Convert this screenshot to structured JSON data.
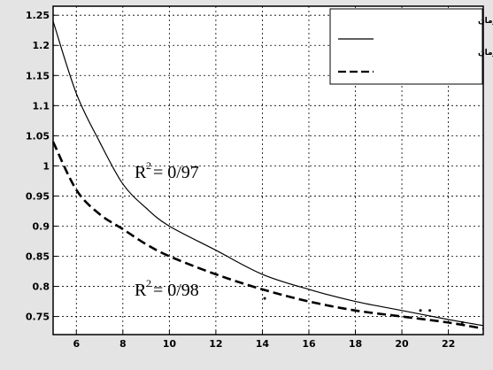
{
  "chart_data": {
    "type": "line",
    "xlim": [
      5,
      23.5
    ],
    "ylim": [
      0.72,
      1.265
    ],
    "x_ticks": [
      6,
      8,
      10,
      12,
      14,
      16,
      18,
      20,
      22
    ],
    "x_tick_labels": [
      "6",
      "8",
      "10",
      "12",
      "14",
      "16",
      "18",
      "20",
      "22"
    ],
    "y_ticks": [
      0.75,
      0.8,
      0.85,
      0.9,
      0.95,
      1,
      1.05,
      1.1,
      1.15,
      1.2,
      1.25
    ],
    "y_tick_labels": [
      "0.75",
      "0.8",
      "0.85",
      "0.9",
      "0.95",
      "1",
      "1.05",
      "1.1",
      "1.15",
      "1.2",
      "1.25"
    ],
    "grid": true,
    "legend_position": "top-right",
    "series": [
      {
        "name": "انمودار درصد تحکیم زمان",
        "style": "solid",
        "color": "#000000",
        "x": [
          5,
          6,
          7,
          8,
          9,
          10,
          12,
          14,
          16,
          18,
          20,
          22,
          23.5
        ],
        "y": [
          1.24,
          1.12,
          1.04,
          0.97,
          0.93,
          0.9,
          0.86,
          0.82,
          0.795,
          0.775,
          0.76,
          0.745,
          0.735
        ]
      },
      {
        "name": "انمودار درصد بازسازی - زمان",
        "style": "dashed",
        "color": "#000000",
        "x": [
          5,
          6,
          7,
          8,
          9,
          10,
          12,
          14,
          16,
          18,
          20,
          22,
          23.5
        ],
        "y": [
          1.04,
          0.96,
          0.92,
          0.895,
          0.87,
          0.85,
          0.82,
          0.795,
          0.775,
          0.76,
          0.75,
          0.74,
          0.73
        ]
      }
    ],
    "scatter_points": [
      {
        "x": 14.1,
        "y": 0.78
      },
      {
        "x": 20.8,
        "y": 0.76
      },
      {
        "x": 21.2,
        "y": 0.76
      },
      {
        "x": 22.6,
        "y": 0.74
      }
    ],
    "annotations": [
      {
        "base": "R",
        "sup": "2",
        "text": "= 0/97",
        "x": 8.5,
        "y": 0.98
      },
      {
        "base": "R",
        "sup": "2",
        "text": "= 0/98",
        "x": 8.5,
        "y": 0.785
      }
    ]
  }
}
